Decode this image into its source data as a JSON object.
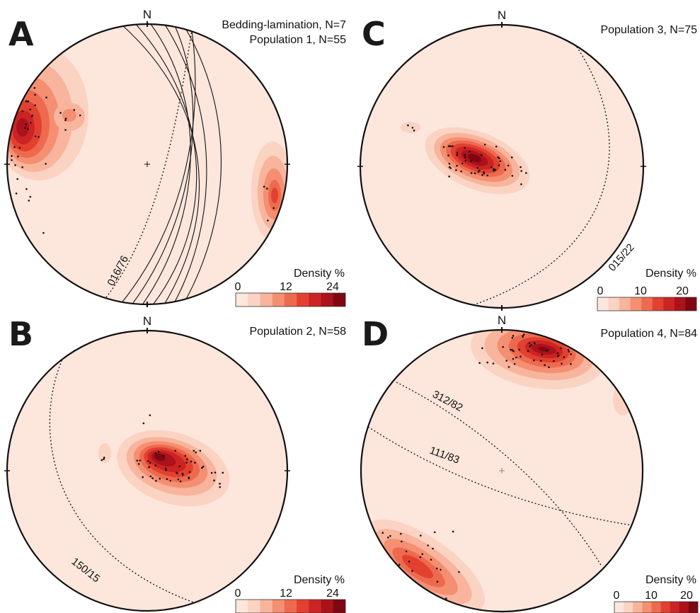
{
  "panels": [
    {
      "letter": "A",
      "north": "N",
      "captions": [
        "Bedding-lamination, N=7",
        "Population 1, N=55"
      ],
      "legend": {
        "title": "Density %",
        "ticks": [
          "0",
          "12",
          "24"
        ]
      },
      "planes": [
        {
          "label": "016/76"
        }
      ]
    },
    {
      "letter": "B",
      "north": "N",
      "captions": [
        "Population 2, N=58"
      ],
      "legend": {
        "title": "Density %",
        "ticks": [
          "0",
          "12",
          "24"
        ]
      },
      "planes": [
        {
          "label": "150/15"
        }
      ]
    },
    {
      "letter": "C",
      "north": "N",
      "captions": [
        "Population 3, N=75"
      ],
      "legend": {
        "title": "Density %",
        "ticks": [
          "0",
          "10",
          "20"
        ]
      },
      "planes": [
        {
          "label": "015/22"
        }
      ]
    },
    {
      "letter": "D",
      "north": "N",
      "captions": [
        "Population 4, N=84"
      ],
      "legend": {
        "title": "Density %",
        "ticks": [
          "0",
          "10",
          "20"
        ]
      },
      "planes": [
        {
          "label": "312/82"
        },
        {
          "label": "111/83"
        }
      ]
    }
  ],
  "colors": {
    "background": "#fde6dc",
    "density_ramp": [
      "#fde6dc",
      "#fbd3c2",
      "#f8b49c",
      "#f48f72",
      "#ee6a4f",
      "#e2412f",
      "#cc2424",
      "#ab1219",
      "#7f0712"
    ]
  }
}
